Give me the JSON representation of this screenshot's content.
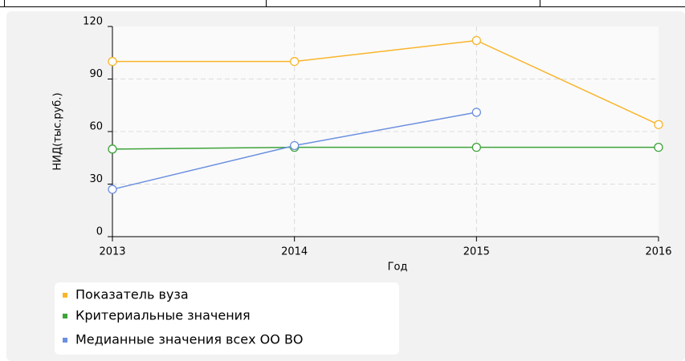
{
  "chart_data": {
    "type": "line",
    "x": [
      2013,
      2014,
      2015,
      2016
    ],
    "xlim": [
      2013,
      2016
    ],
    "xticks": [
      2013,
      2014,
      2015,
      2016
    ],
    "ylim": [
      0,
      120
    ],
    "yticks": [
      0,
      30,
      60,
      90,
      120
    ],
    "x_label": "Год",
    "y_label": "НИД(тыс.руб.)",
    "grid": true,
    "series": [
      {
        "name": "Показатель вуза",
        "color": "#f9b52a",
        "values": [
          100,
          100,
          112,
          64
        ]
      },
      {
        "name": "Критериальные значения",
        "color": "#3fa33a",
        "values": [
          50,
          51,
          51,
          51
        ]
      },
      {
        "name": "Медианные значения всех ОО ВО",
        "color": "#6b8fe0",
        "values": [
          27,
          52,
          71,
          null
        ]
      }
    ]
  }
}
